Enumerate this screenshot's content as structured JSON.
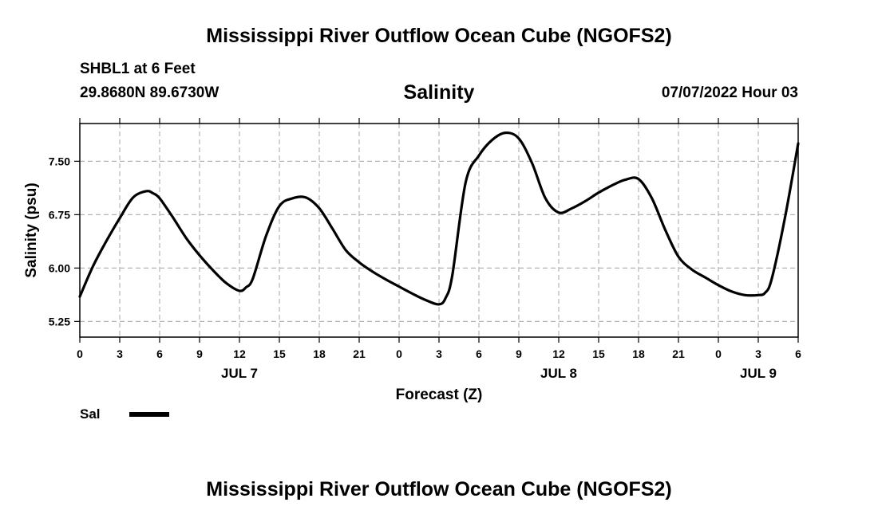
{
  "header": {
    "main_title": "Mississippi River Outflow Ocean Cube (NGOFS2)",
    "station": "SHBL1 at 6 Feet",
    "location": "29.8680N  89.6730W",
    "timestamp": "07/07/2022 Hour 03"
  },
  "footer": {
    "title": "Mississippi River Outflow Ocean Cube (NGOFS2)"
  },
  "chart_data": {
    "type": "line",
    "title": "Salinity",
    "xlabel": "Forecast (Z)",
    "ylabel": "Salinity (psu)",
    "xlim": [
      0,
      54
    ],
    "ylim": [
      5.03,
      8.03
    ],
    "grid": true,
    "legend_position": "bottom-left",
    "yticks": [
      5.25,
      6.0,
      6.75,
      7.5
    ],
    "ytick_labels": [
      "5.25",
      "6.00",
      "6.75",
      "7.50"
    ],
    "xticks": [
      0,
      3,
      6,
      9,
      12,
      15,
      18,
      21,
      24,
      27,
      30,
      33,
      36,
      39,
      42,
      45,
      48,
      51,
      54
    ],
    "xtick_labels": [
      "0",
      "3",
      "6",
      "9",
      "12",
      "15",
      "18",
      "21",
      "0",
      "3",
      "6",
      "9",
      "12",
      "15",
      "18",
      "21",
      "0",
      "3",
      "6"
    ],
    "day_labels": [
      {
        "x": 12,
        "label": "JUL 7"
      },
      {
        "x": 36,
        "label": "JUL 8"
      },
      {
        "x": 51,
        "label": "JUL 9"
      }
    ],
    "series": [
      {
        "name": "Sal",
        "color": "#000000",
        "x": [
          0,
          1,
          2,
          3,
          4,
          5,
          5.5,
          6,
          7,
          8,
          9,
          10,
          11,
          12,
          12.5,
          13,
          14,
          15,
          16,
          17,
          18,
          19,
          20,
          21,
          22,
          23,
          24,
          25,
          26,
          27,
          27.5,
          28,
          29,
          30,
          31,
          32,
          33,
          34,
          35,
          36,
          37,
          38,
          39,
          40,
          41,
          42,
          43,
          44,
          45,
          46,
          47,
          48,
          49,
          50,
          51,
          51.5,
          52,
          53,
          54
        ],
        "y": [
          5.6,
          6.03,
          6.38,
          6.7,
          6.99,
          7.08,
          7.05,
          6.98,
          6.71,
          6.42,
          6.18,
          5.97,
          5.79,
          5.68,
          5.73,
          5.85,
          6.45,
          6.87,
          6.98,
          6.99,
          6.84,
          6.55,
          6.25,
          6.08,
          5.95,
          5.84,
          5.74,
          5.64,
          5.55,
          5.49,
          5.58,
          5.9,
          7.2,
          7.58,
          7.8,
          7.9,
          7.82,
          7.47,
          6.98,
          6.78,
          6.84,
          6.94,
          7.06,
          7.16,
          7.24,
          7.25,
          6.98,
          6.54,
          6.16,
          5.98,
          5.87,
          5.76,
          5.67,
          5.62,
          5.62,
          5.65,
          5.84,
          6.7,
          7.75
        ]
      }
    ]
  }
}
